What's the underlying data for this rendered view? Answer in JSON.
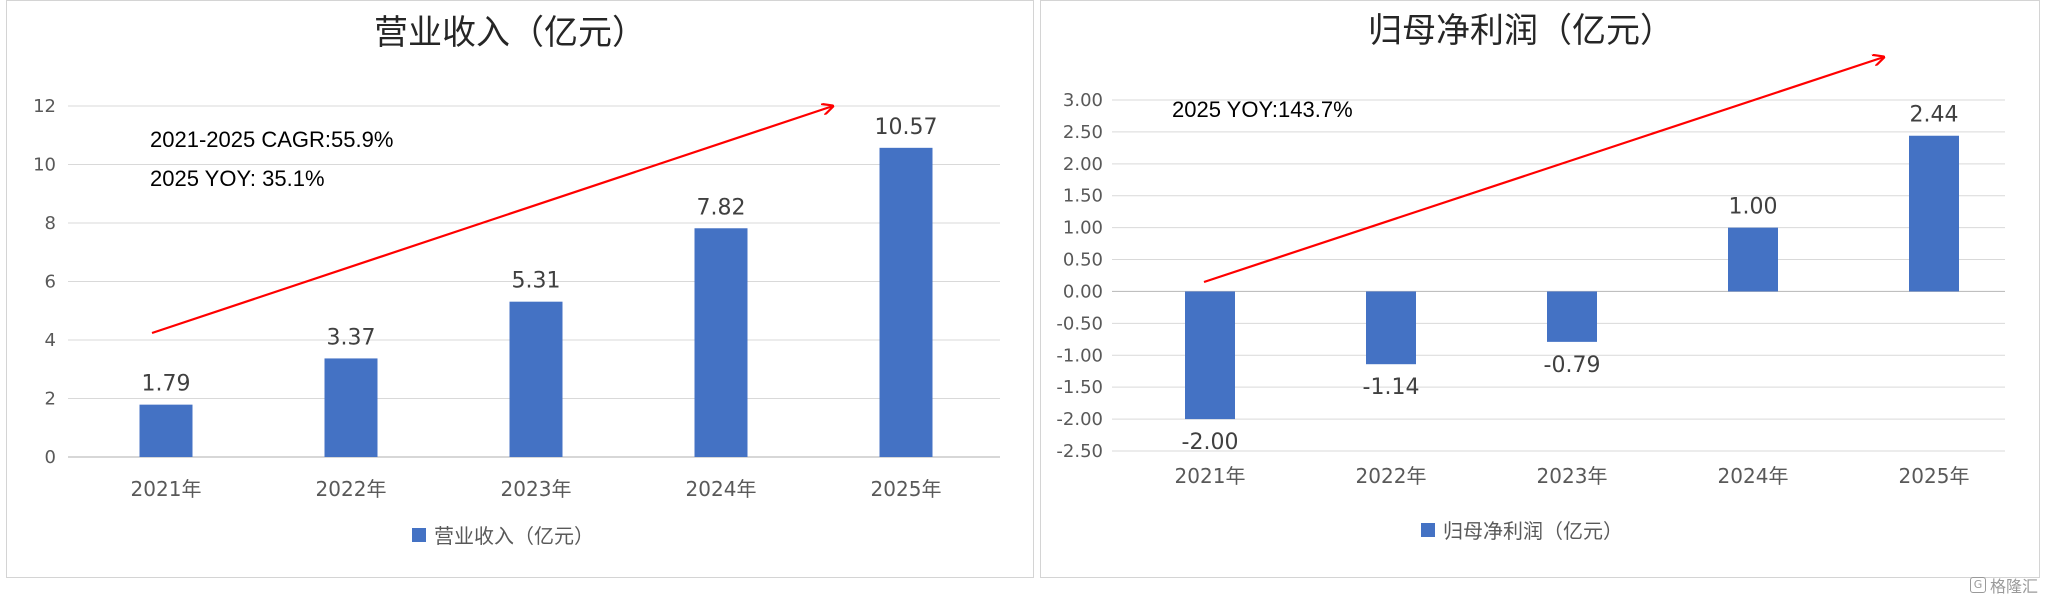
{
  "chart_data": [
    {
      "type": "bar",
      "title": "营业收入（亿元）",
      "categories": [
        "2021年",
        "2022年",
        "2023年",
        "2024年",
        "2025年"
      ],
      "series": [
        {
          "name": "营业收入（亿元）",
          "values": [
            1.79,
            3.37,
            5.31,
            7.82,
            10.57
          ]
        }
      ],
      "data_labels": [
        "1.79",
        "3.37",
        "5.31",
        "7.82",
        "10.57"
      ],
      "ylim": [
        0,
        12
      ],
      "yticks": [
        "0",
        "2",
        "4",
        "6",
        "8",
        "10",
        "12"
      ],
      "annotations": [
        "2021-2025  CAGR:55.9%",
        "2025 YOY: 35.1%"
      ],
      "grid": true,
      "legend": "bottom",
      "bar_color": "#4472C4",
      "arrow_color": "#FF0000"
    },
    {
      "type": "bar",
      "title": "归母净利润（亿元）",
      "categories": [
        "2021年",
        "2022年",
        "2023年",
        "2024年",
        "2025年"
      ],
      "series": [
        {
          "name": "归母净利润（亿元）",
          "values": [
            -2.0,
            -1.14,
            -0.79,
            1.0,
            2.44
          ]
        }
      ],
      "data_labels": [
        "-2.00",
        "-1.14",
        "-0.79",
        "1.00",
        "2.44"
      ],
      "ylim": [
        -2.5,
        3.0
      ],
      "yticks": [
        "-2.50",
        "-2.00",
        "-1.50",
        "-1.00",
        "-0.50",
        "0.00",
        "0.50",
        "1.00",
        "1.50",
        "2.00",
        "2.50",
        "3.00"
      ],
      "annotations": [
        "2025 YOY:143.7%"
      ],
      "grid": true,
      "legend": "bottom",
      "bar_color": "#4472C4",
      "arrow_color": "#FF0000"
    }
  ],
  "watermark": {
    "logo": "G",
    "text": "格隆汇"
  }
}
